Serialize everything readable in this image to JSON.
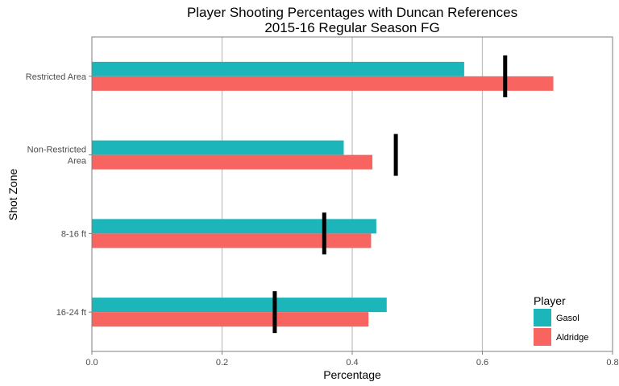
{
  "chart_data": {
    "type": "bar",
    "orientation": "horizontal",
    "title": "Player Shooting Percentages with Duncan References",
    "subtitle": "2015-16 Regular Season FG",
    "xlabel": "Percentage",
    "ylabel": "Shot Zone",
    "xlim": [
      0,
      0.8
    ],
    "x_ticks": [
      "0.0",
      "0.2",
      "0.4",
      "0.6",
      "0.8"
    ],
    "grid": true,
    "legend_position": "bottom-right",
    "legend_title": "Player",
    "categories": [
      [
        "Restricted Area"
      ],
      [
        "Non-Restricted",
        "Area"
      ],
      [
        "8-16 ft"
      ],
      [
        "16-24 ft"
      ]
    ],
    "series": [
      {
        "name": "Gasol",
        "color": "#1CB5B9",
        "values": [
          0.572,
          0.387,
          0.437,
          0.453
        ]
      },
      {
        "name": "Aldridge",
        "color": "#F8645F",
        "values": [
          0.709,
          0.431,
          0.429,
          0.425
        ]
      }
    ],
    "reference": {
      "color": "#000000",
      "values": [
        0.635,
        0.467,
        0.357,
        0.281
      ]
    }
  }
}
